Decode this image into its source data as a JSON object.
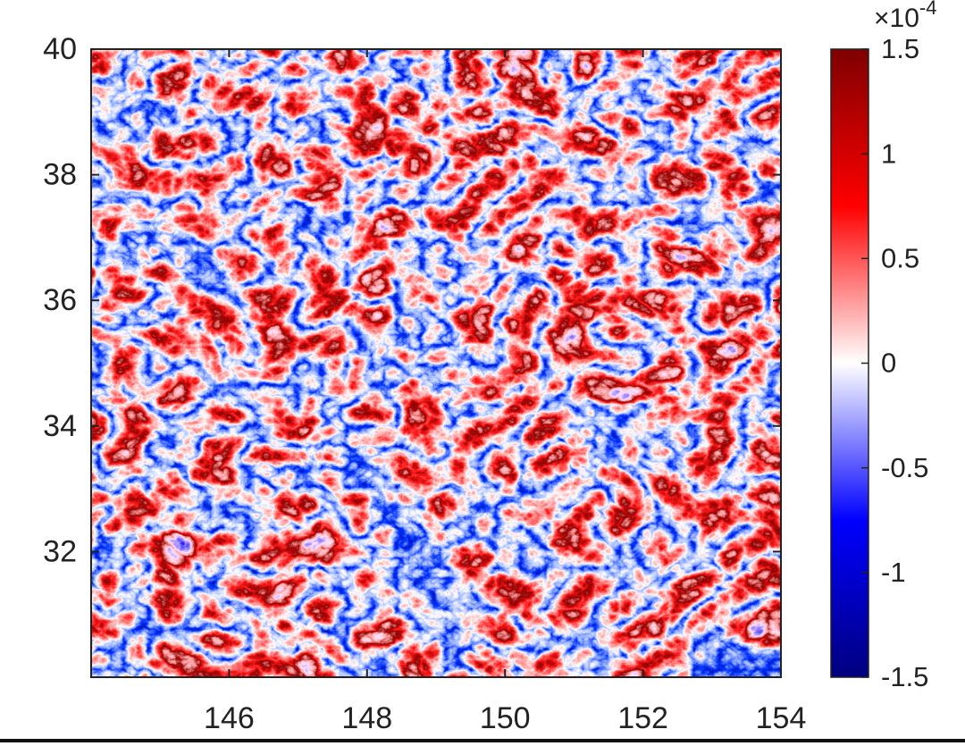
{
  "chart_data": {
    "type": "heatmap",
    "xlim": [
      144,
      154
    ],
    "xticks": [
      146,
      148,
      150,
      152,
      154
    ],
    "ylim": [
      30,
      40
    ],
    "yticks": [
      32,
      34,
      36,
      38,
      40
    ],
    "clim": [
      -1.5,
      1.5
    ],
    "cticks": [
      -1.5,
      -1,
      -0.5,
      0,
      0.5,
      1,
      1.5
    ],
    "colorbar_multiplier": "×10",
    "colorbar_exponent": "-4",
    "colormap": [
      "#00007f",
      "#0000ff",
      "#ffffff",
      "#ff0000",
      "#7f0000"
    ]
  }
}
